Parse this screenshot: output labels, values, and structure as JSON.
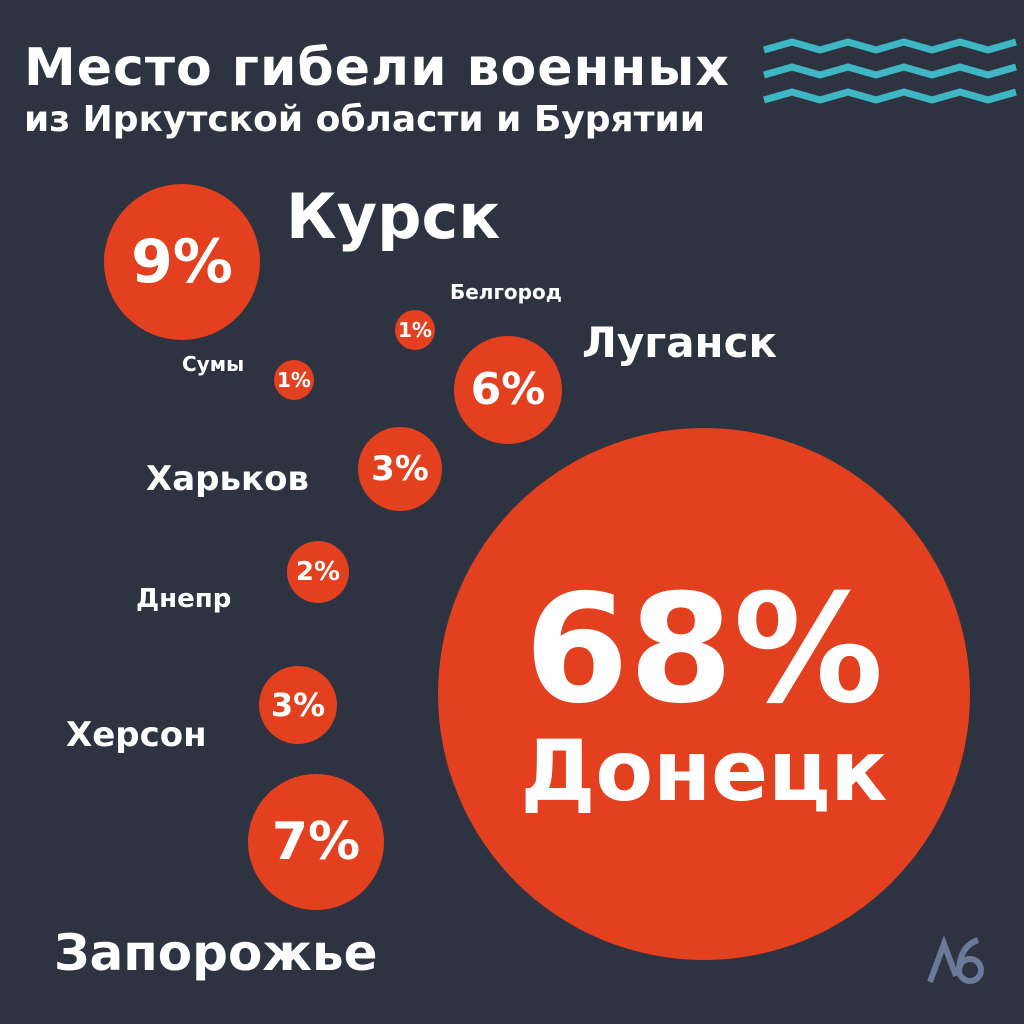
{
  "header": {
    "title": "Место гибели военных",
    "subtitle": "из Иркутской области и Бурятии"
  },
  "chart_data": {
    "type": "bubble",
    "unit": "%",
    "regions": [
      {
        "name": "Донецк",
        "value": 68
      },
      {
        "name": "Курск",
        "value": 9
      },
      {
        "name": "Запорожье",
        "value": 7
      },
      {
        "name": "Луганск",
        "value": 6
      },
      {
        "name": "Харьков",
        "value": 3
      },
      {
        "name": "Херсон",
        "value": 3
      },
      {
        "name": "Днепр",
        "value": 2
      },
      {
        "name": "Белгород",
        "value": 1
      },
      {
        "name": "Сумы",
        "value": 1
      }
    ]
  },
  "colors": {
    "background": "#2d3341",
    "bubble": "#e2401f",
    "text": "#ffffff",
    "waves": "#3fb6c4",
    "logo": "#6c7a99"
  },
  "icons": {
    "waves": "zigzag-waves-icon",
    "logo": "publisher-logo-icon"
  }
}
